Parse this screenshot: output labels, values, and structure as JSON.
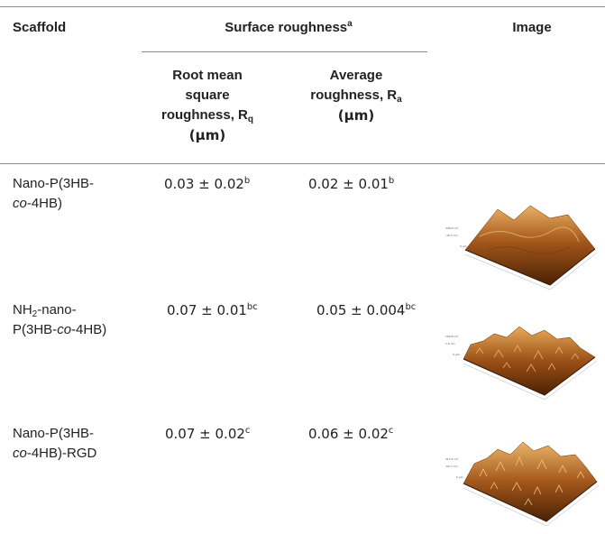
{
  "header": {
    "scaffold": "Scaffold",
    "surface_roughness_label": "Surface roughness",
    "surface_roughness_sup": "a",
    "image": "Image",
    "rq_line1": "Root mean",
    "rq_line2": "square",
    "rq_line3": "roughness, R",
    "rq_sub": "q",
    "rq_unit": "(μm)",
    "ra_line1": "Average",
    "ra_line2": "roughness, R",
    "ra_sub": "a",
    "ra_unit": "(μm)"
  },
  "rows": [
    {
      "scaffold_line1": "Nano-P(3HB-",
      "scaffold_line2_italic": "co",
      "scaffold_line2_rest": "-4HB)",
      "rq": "0.03 ± 0.02",
      "rq_sup": "b",
      "ra": "0.02 ± 0.01",
      "ra_sup": "b",
      "afm_top": "248.3 nm",
      "afm_bottom": "-16.3 nm",
      "afm_axis": "5 μm"
    },
    {
      "scaffold_line1_pre": "NH",
      "scaffold_line1_sub": "2",
      "scaffold_line1_post": "-nano-",
      "scaffold_line2_pre": "P(3HB-",
      "scaffold_line2_italic": "co",
      "scaffold_line2_rest": "-4HB)",
      "rq": "0.07 ± 0.01",
      "rq_sup": "bc",
      "ra": "0.05 ± 0.004",
      "ra_sup": "bc",
      "afm_top": "160.8 nm",
      "afm_bottom": "1.6 nm",
      "afm_axis": "5 μm"
    },
    {
      "scaffold_line1": "Nano-P(3HB-",
      "scaffold_line2_italic": "co",
      "scaffold_line2_rest": "-4HB)-RGD",
      "rq": "0.07 ± 0.02",
      "rq_sup": "c",
      "ra": "0.06 ± 0.02",
      "ra_sup": "c",
      "afm_top": "213.2 nm",
      "afm_bottom": "-62.7 nm",
      "afm_axis": "5 μm"
    }
  ],
  "colors": {
    "afm_dark": "#5a2a06",
    "afm_mid": "#a0561a",
    "afm_light": "#e0a24a"
  }
}
